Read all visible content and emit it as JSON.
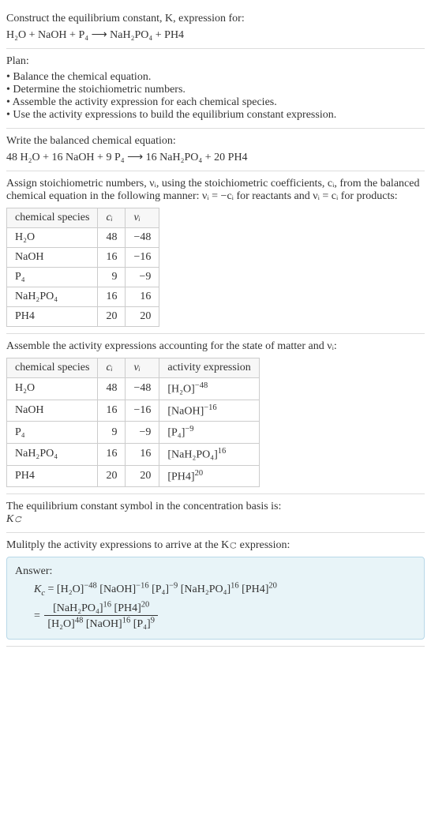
{
  "intro": {
    "line1": "Construct the equilibrium constant, K, expression for:",
    "equation": "H₂O + NaOH + P₄  ⟶  NaH₂PO₄ + PH4"
  },
  "plan": {
    "heading": "Plan:",
    "items": [
      "• Balance the chemical equation.",
      "• Determine the stoichiometric numbers.",
      "• Assemble the activity expression for each chemical species.",
      "• Use the activity expressions to build the equilibrium constant expression."
    ]
  },
  "balanced": {
    "heading": "Write the balanced chemical equation:",
    "equation": "48 H₂O + 16 NaOH + 9 P₄  ⟶  16 NaH₂PO₄ + 20 PH4"
  },
  "stoich": {
    "heading": "Assign stoichiometric numbers, νᵢ, using the stoichiometric coefficients, cᵢ, from the balanced chemical equation in the following manner: νᵢ = −cᵢ for reactants and νᵢ = cᵢ for products:",
    "cols": [
      "chemical species",
      "cᵢ",
      "νᵢ"
    ],
    "rows": [
      [
        "H₂O",
        "48",
        "−48"
      ],
      [
        "NaOH",
        "16",
        "−16"
      ],
      [
        "P₄",
        "9",
        "−9"
      ],
      [
        "NaH₂PO₄",
        "16",
        "16"
      ],
      [
        "PH4",
        "20",
        "20"
      ]
    ]
  },
  "activity": {
    "heading": "Assemble the activity expressions accounting for the state of matter and νᵢ:",
    "cols": [
      "chemical species",
      "cᵢ",
      "νᵢ",
      "activity expression"
    ],
    "rows": [
      {
        "sp": "H₂O",
        "c": "48",
        "v": "−48",
        "expr_base": "[H₂O]",
        "expr_exp": "−48"
      },
      {
        "sp": "NaOH",
        "c": "16",
        "v": "−16",
        "expr_base": "[NaOH]",
        "expr_exp": "−16"
      },
      {
        "sp": "P₄",
        "c": "9",
        "v": "−9",
        "expr_base": "[P₄]",
        "expr_exp": "−9"
      },
      {
        "sp": "NaH₂PO₄",
        "c": "16",
        "v": "16",
        "expr_base": "[NaH₂PO₄]",
        "expr_exp": "16"
      },
      {
        "sp": "PH4",
        "c": "20",
        "v": "20",
        "expr_base": "[PH4]",
        "expr_exp": "20"
      }
    ]
  },
  "kcsymbol": {
    "line1": "The equilibrium constant symbol in the concentration basis is:",
    "line2": "K𝚌"
  },
  "multiply": {
    "heading": "Mulitply the activity expressions to arrive at the K𝚌 expression:"
  },
  "answer": {
    "label": "Answer:",
    "terms": [
      {
        "base": "[H₂O]",
        "exp": "−48"
      },
      {
        "base": "[NaOH]",
        "exp": "−16"
      },
      {
        "base": "[P₄]",
        "exp": "−9"
      },
      {
        "base": "[NaH₂PO₄]",
        "exp": "16"
      },
      {
        "base": "[PH4]",
        "exp": "20"
      }
    ],
    "frac_num": [
      {
        "base": "[NaH₂PO₄]",
        "exp": "16"
      },
      {
        "base": "[PH4]",
        "exp": "20"
      }
    ],
    "frac_den": [
      {
        "base": "[H₂O]",
        "exp": "48"
      },
      {
        "base": "[NaOH]",
        "exp": "16"
      },
      {
        "base": "[P₄]",
        "exp": "9"
      }
    ]
  }
}
